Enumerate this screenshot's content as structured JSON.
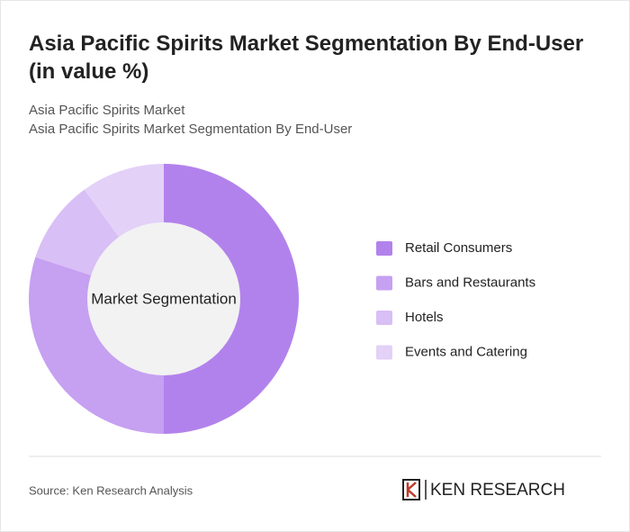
{
  "chart_data": {
    "type": "donut",
    "title": "Asia Pacific Spirits Market Segmentation By End-User (in value %)",
    "subtitle": [
      "Asia Pacific Spirits Market",
      "Asia Pacific Spirits Market Segmentation By End-User"
    ],
    "center_label": "Market Segmentation",
    "categories": [
      "Retail Consumers",
      "Bars and Restaurants",
      "Hotels",
      "Events and Catering"
    ],
    "values": [
      50,
      30,
      10,
      10
    ],
    "colors": [
      "#b282ec",
      "#c6a0f1",
      "#d8bff5",
      "#e3d1f8"
    ],
    "source": "Source: Ken Research Analysis",
    "brand": "KEN RESEARCH"
  }
}
